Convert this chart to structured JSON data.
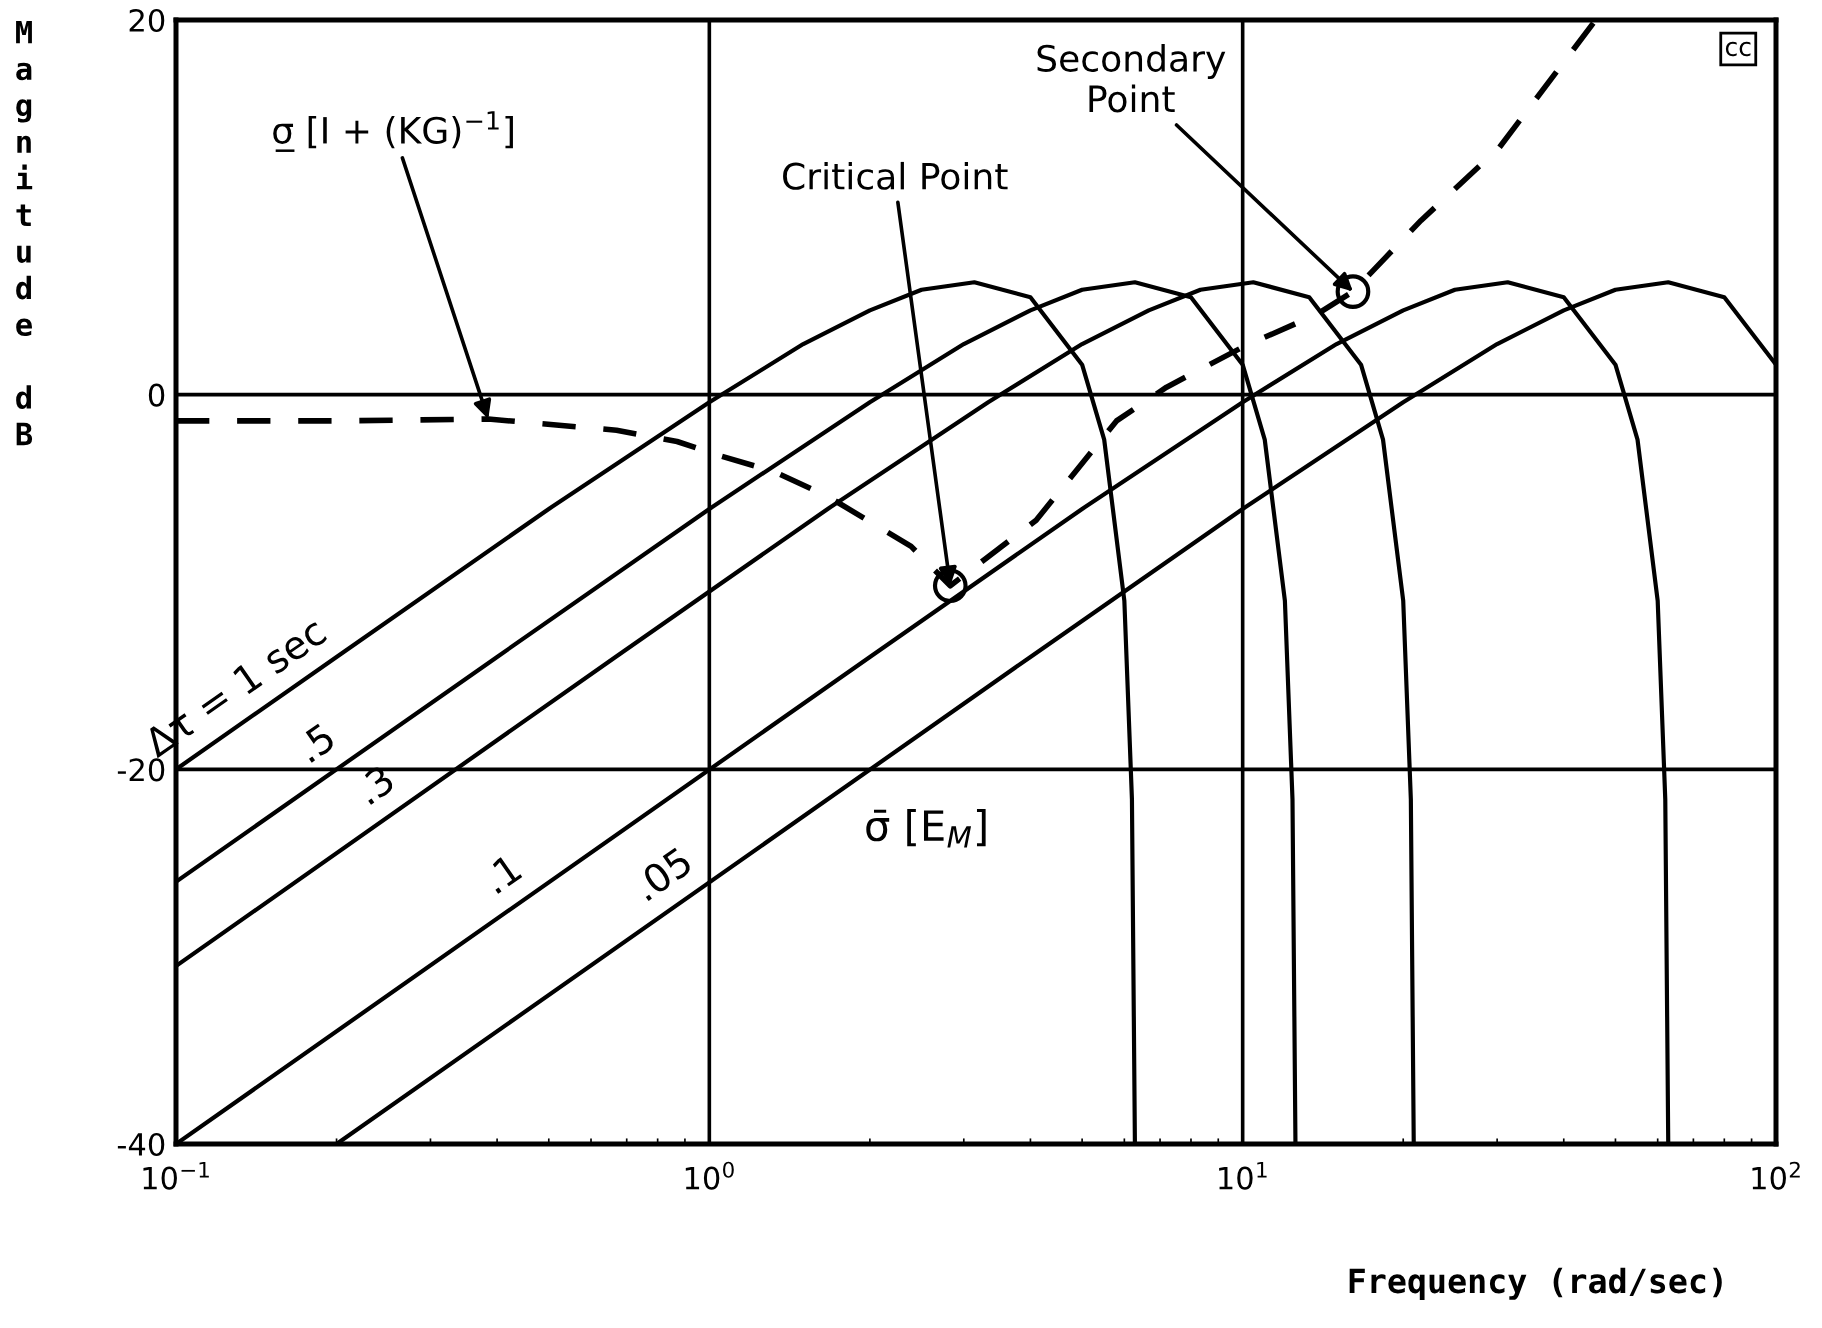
{
  "chart_data": {
    "type": "line",
    "xlabel": "Frequency (rad/sec)",
    "ylabel": "Magnitude dB",
    "log": "x",
    "xlim": [
      0.1,
      100
    ],
    "ylim": [
      -40,
      20
    ],
    "xticks": [
      {
        "value": 0.1,
        "label": "10$^{−1}$"
      },
      {
        "value": 1,
        "label": "10$^{0}$"
      },
      {
        "value": 10,
        "label": "10$^{1}$"
      },
      {
        "value": 100,
        "label": "10$^{2}$"
      }
    ],
    "yticks": [
      -40,
      -20,
      0,
      20
    ],
    "grid": true,
    "legend": false,
    "series": [
      {
        "name": "Δτ = 1 sec",
        "color": "#000000",
        "line_style": "solid",
        "x": [
          0.1,
          0.2,
          0.5,
          1,
          1.5,
          2,
          2.5,
          3.14,
          4,
          5,
          5.5,
          6,
          6.2,
          6.28
        ],
        "values": [
          -20.0,
          -14.0,
          -6.1,
          -0.4,
          2.7,
          4.5,
          5.6,
          6.0,
          5.2,
          1.6,
          -2.4,
          -11.0,
          -21.6,
          -40
        ]
      },
      {
        "name": ".5",
        "color": "#000000",
        "line_style": "solid",
        "x": [
          0.1,
          0.4,
          1,
          2,
          3,
          4,
          5,
          6.28,
          8,
          10,
          11,
          12,
          12.4,
          12.56
        ],
        "values": [
          -26.0,
          -14.0,
          -6.1,
          -0.4,
          2.7,
          4.5,
          5.6,
          6.0,
          5.2,
          1.6,
          -2.4,
          -11.0,
          -21.6,
          -40
        ]
      },
      {
        "name": ".3",
        "color": "#000000",
        "line_style": "solid",
        "x": [
          0.1,
          0.667,
          1.667,
          3.333,
          5,
          6.667,
          8.333,
          10.47,
          13.33,
          16.67,
          18.33,
          20,
          20.67,
          20.93
        ],
        "values": [
          -30.5,
          -14.0,
          -6.1,
          -0.4,
          2.7,
          4.5,
          5.6,
          6.0,
          5.2,
          1.6,
          -2.4,
          -11.0,
          -21.6,
          -40
        ]
      },
      {
        "name": ".1",
        "color": "#000000",
        "line_style": "solid",
        "x": [
          0.1,
          2,
          5,
          10,
          15,
          20,
          25,
          31.4,
          40,
          50,
          55,
          60,
          62,
          62.8
        ],
        "values": [
          -40,
          -14.0,
          -6.1,
          -0.4,
          2.7,
          4.5,
          5.6,
          6.0,
          5.2,
          1.6,
          -2.4,
          -11.0,
          -21.6,
          -40
        ]
      },
      {
        "name": ".05",
        "color": "#000000",
        "line_style": "solid",
        "x": [
          0.2,
          4,
          10,
          20,
          30,
          40,
          50,
          62.8,
          80,
          100
        ],
        "values": [
          -40,
          -14.0,
          -6.1,
          -0.4,
          2.7,
          4.5,
          5.6,
          6.0,
          5.2,
          1.6
        ]
      },
      {
        "color": "#000000",
        "line_style": "dashed",
        "x": [
          0.1,
          0.2,
          0.385,
          0.67,
          0.87,
          1.03,
          1.32,
          1.66,
          2.39,
          2.83,
          4.1,
          5.8,
          7.2,
          10.1,
          13.8,
          16.1,
          21.6,
          30.3,
          45.9
        ],
        "values": [
          -1.4,
          -1.4,
          -1.3,
          -1.9,
          -2.5,
          -3.2,
          -4.1,
          -5.4,
          -8.1,
          -10.2,
          -6.7,
          -1.4,
          0.4,
          2.6,
          4.3,
          5.5,
          9.3,
          13.2,
          20
        ]
      }
    ],
    "annotations": [
      {
        "text": "Critical Point",
        "x": 2.83,
        "y": -10.2
      },
      {
        "text": "Secondary\nPoint",
        "x": 16.1,
        "y": 5.5
      },
      {
        "text": "σ̲ [I + (KG)$^{−1}$]",
        "x": 0.385,
        "y": -1.3
      },
      "σ̄ [E$_{M}$]",
      "cc"
    ]
  }
}
